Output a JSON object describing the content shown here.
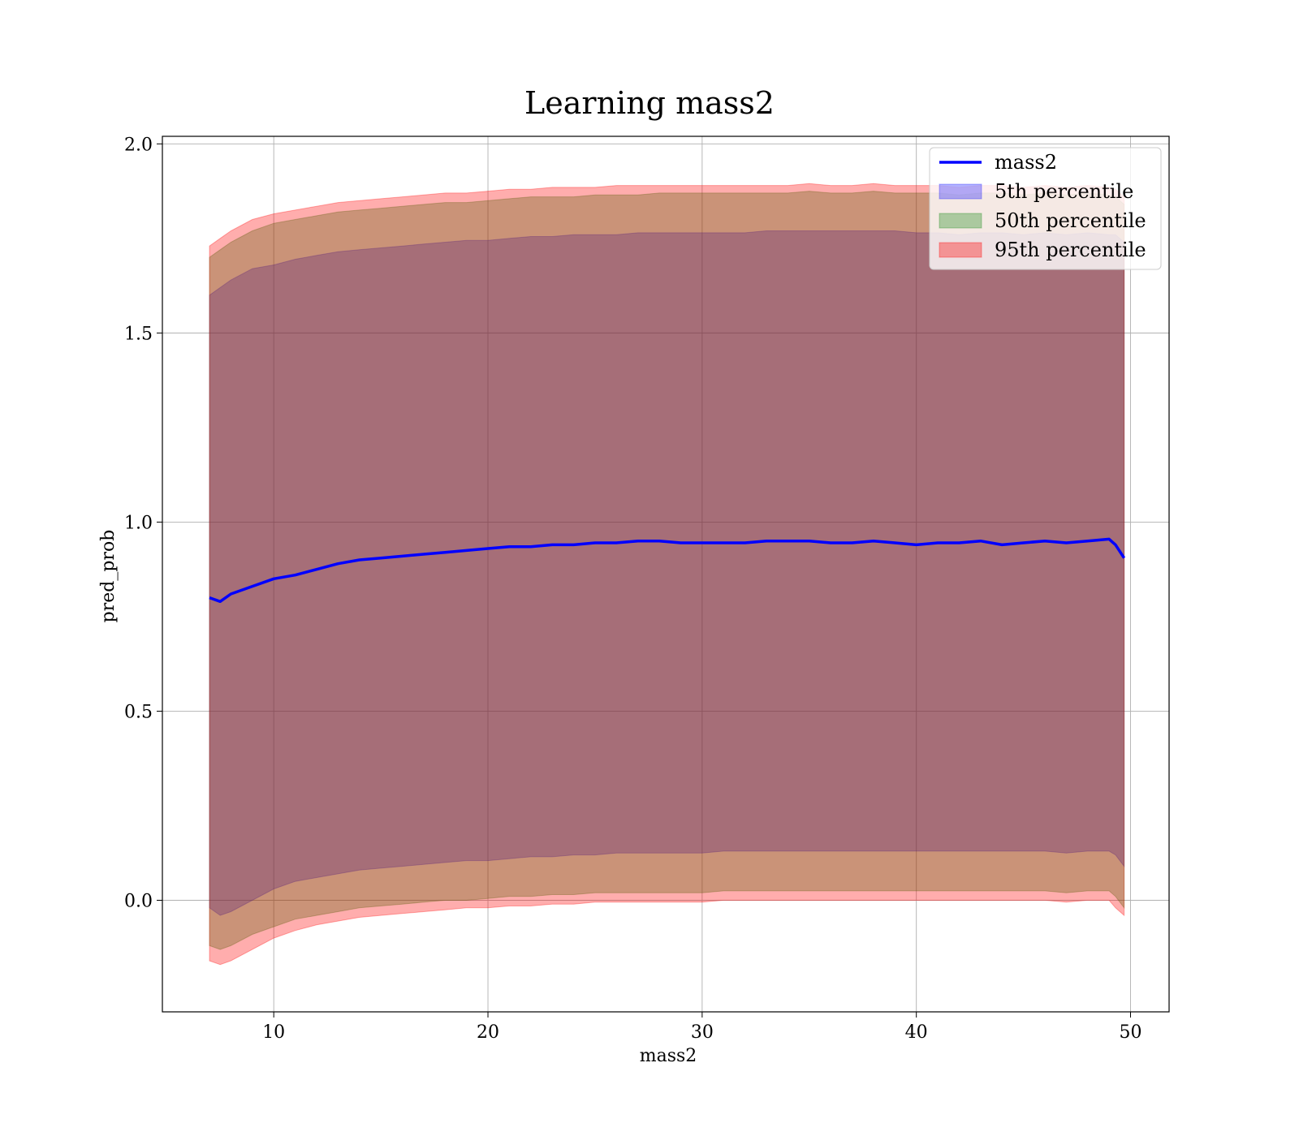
{
  "chart_data": {
    "type": "line",
    "title": "Learning mass2",
    "xlabel": "mass2",
    "ylabel": "pred_prob",
    "xlim": [
      4.8,
      51.8
    ],
    "ylim": [
      -0.295,
      2.02
    ],
    "xticks": [
      10,
      20,
      30,
      40,
      50
    ],
    "yticks": [
      0.0,
      0.5,
      1.0,
      1.5,
      2.0
    ],
    "xtick_labels": [
      "10",
      "20",
      "30",
      "40",
      "50"
    ],
    "ytick_labels": [
      "0.0",
      "0.5",
      "1.0",
      "1.5",
      "2.0"
    ],
    "grid": true,
    "legend_position": "top-right",
    "x": [
      7.0,
      7.5,
      8,
      9,
      10,
      11,
      12,
      13,
      14,
      15,
      16,
      17,
      18,
      19,
      20,
      21,
      22,
      23,
      24,
      25,
      26,
      27,
      28,
      29,
      30,
      31,
      32,
      33,
      34,
      35,
      36,
      37,
      38,
      39,
      40,
      41,
      42,
      43,
      44,
      45,
      46,
      47,
      48,
      49,
      49.3,
      49.7
    ],
    "series": [
      {
        "name": "mass2",
        "kind": "line",
        "color": "#0000ff",
        "values": [
          0.8,
          0.79,
          0.81,
          0.83,
          0.85,
          0.86,
          0.875,
          0.89,
          0.9,
          0.905,
          0.91,
          0.915,
          0.92,
          0.925,
          0.93,
          0.935,
          0.935,
          0.94,
          0.94,
          0.945,
          0.945,
          0.95,
          0.95,
          0.945,
          0.945,
          0.945,
          0.945,
          0.95,
          0.95,
          0.95,
          0.945,
          0.945,
          0.95,
          0.945,
          0.94,
          0.945,
          0.945,
          0.95,
          0.94,
          0.945,
          0.95,
          0.945,
          0.95,
          0.955,
          0.94,
          0.905
        ]
      },
      {
        "name": "5th percentile",
        "kind": "band",
        "color": "#0000ff",
        "upper": [
          1.6,
          1.62,
          1.64,
          1.67,
          1.68,
          1.695,
          1.705,
          1.715,
          1.72,
          1.725,
          1.73,
          1.735,
          1.74,
          1.745,
          1.745,
          1.75,
          1.755,
          1.755,
          1.76,
          1.76,
          1.76,
          1.765,
          1.765,
          1.765,
          1.765,
          1.765,
          1.765,
          1.77,
          1.77,
          1.77,
          1.77,
          1.77,
          1.77,
          1.77,
          1.765,
          1.765,
          1.76,
          1.765,
          1.765,
          1.76,
          1.765,
          1.76,
          1.765,
          1.76,
          1.76,
          1.74
        ],
        "lower": [
          -0.02,
          -0.04,
          -0.03,
          0.0,
          0.03,
          0.05,
          0.06,
          0.07,
          0.08,
          0.085,
          0.09,
          0.095,
          0.1,
          0.105,
          0.105,
          0.11,
          0.115,
          0.115,
          0.12,
          0.12,
          0.125,
          0.125,
          0.125,
          0.125,
          0.125,
          0.13,
          0.13,
          0.13,
          0.13,
          0.13,
          0.13,
          0.13,
          0.13,
          0.13,
          0.13,
          0.13,
          0.13,
          0.13,
          0.13,
          0.13,
          0.13,
          0.125,
          0.13,
          0.13,
          0.12,
          0.09
        ]
      },
      {
        "name": "50th percentile",
        "kind": "band",
        "color": "#008000",
        "upper": [
          1.7,
          1.72,
          1.74,
          1.77,
          1.79,
          1.8,
          1.81,
          1.82,
          1.825,
          1.83,
          1.835,
          1.84,
          1.845,
          1.845,
          1.85,
          1.855,
          1.86,
          1.86,
          1.86,
          1.865,
          1.865,
          1.865,
          1.87,
          1.87,
          1.87,
          1.87,
          1.87,
          1.87,
          1.87,
          1.875,
          1.87,
          1.87,
          1.875,
          1.87,
          1.87,
          1.87,
          1.865,
          1.87,
          1.87,
          1.865,
          1.87,
          1.865,
          1.87,
          1.865,
          1.86,
          1.84
        ],
        "lower": [
          -0.12,
          -0.13,
          -0.12,
          -0.09,
          -0.07,
          -0.05,
          -0.04,
          -0.03,
          -0.02,
          -0.015,
          -0.01,
          -0.005,
          0.0,
          0.0,
          0.005,
          0.01,
          0.01,
          0.015,
          0.015,
          0.02,
          0.02,
          0.02,
          0.02,
          0.02,
          0.02,
          0.025,
          0.025,
          0.025,
          0.025,
          0.025,
          0.025,
          0.025,
          0.025,
          0.025,
          0.025,
          0.025,
          0.025,
          0.025,
          0.025,
          0.025,
          0.025,
          0.02,
          0.025,
          0.025,
          0.01,
          -0.02
        ]
      },
      {
        "name": "95th percentile",
        "kind": "band",
        "color": "#ff0000",
        "upper": [
          1.73,
          1.75,
          1.77,
          1.8,
          1.815,
          1.825,
          1.835,
          1.845,
          1.85,
          1.855,
          1.86,
          1.865,
          1.87,
          1.87,
          1.875,
          1.88,
          1.88,
          1.885,
          1.885,
          1.885,
          1.89,
          1.89,
          1.89,
          1.89,
          1.89,
          1.89,
          1.89,
          1.89,
          1.89,
          1.895,
          1.89,
          1.89,
          1.895,
          1.89,
          1.89,
          1.89,
          1.885,
          1.89,
          1.89,
          1.885,
          1.89,
          1.885,
          1.89,
          1.885,
          1.88,
          1.86
        ],
        "lower": [
          -0.16,
          -0.17,
          -0.16,
          -0.13,
          -0.1,
          -0.08,
          -0.065,
          -0.055,
          -0.045,
          -0.04,
          -0.035,
          -0.03,
          -0.025,
          -0.02,
          -0.02,
          -0.015,
          -0.015,
          -0.01,
          -0.01,
          -0.005,
          -0.005,
          -0.005,
          -0.005,
          -0.005,
          -0.005,
          0.0,
          0.0,
          0.0,
          0.0,
          0.0,
          0.0,
          0.0,
          0.0,
          0.0,
          0.0,
          0.0,
          0.0,
          0.0,
          0.0,
          0.0,
          0.0,
          -0.005,
          0.0,
          0.0,
          -0.02,
          -0.04
        ]
      }
    ]
  }
}
